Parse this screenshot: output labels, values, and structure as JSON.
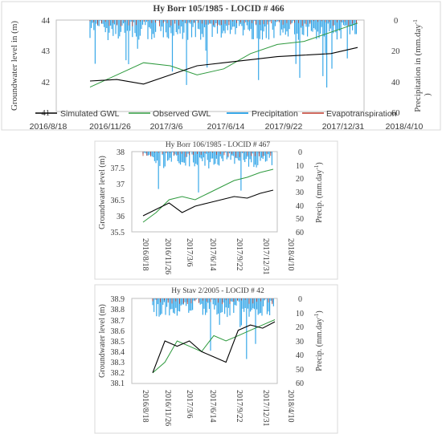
{
  "chart_data": [
    {
      "type": "line",
      "title": "Hy Borr 105/1985 - LOCID # 466",
      "ylabel": "Groundwater level in (m)",
      "ylabel2": "Precipitation in (mm.day",
      "ylabel2_sup": "-1",
      "ylabel2_close": ")",
      "ylim": [
        41,
        44
      ],
      "yticks": [
        "41",
        "42",
        "43",
        "44"
      ],
      "y2lim": [
        0,
        60
      ],
      "y2ticks": [
        "0",
        "20",
        "40",
        "60"
      ],
      "y2_inverted": true,
      "xticks": [
        "2016/8/18",
        "2016/11/26",
        "2017/3/6",
        "2017/6/14",
        "2017/9/22",
        "2017/12/31",
        "2018/4/10"
      ],
      "legend": [
        "Simulated GWL",
        "Observed GWL",
        "Precipitation",
        "Evapotranspiration"
      ],
      "legend_position": "bottom",
      "series": [
        {
          "name": "Simulated GWL",
          "color": "#000000",
          "x": [
            0,
            1,
            2,
            3,
            4,
            5,
            6,
            7,
            8,
            9,
            10
          ],
          "y": [
            42.0,
            42.05,
            41.9,
            42.2,
            42.5,
            42.6,
            42.7,
            42.8,
            42.85,
            42.9,
            43.1
          ]
        },
        {
          "name": "Observed GWL",
          "color": "#2e9a3e",
          "x": [
            0,
            1,
            2,
            3,
            4,
            5,
            6,
            7,
            8,
            9,
            10
          ],
          "y": [
            41.8,
            42.2,
            42.6,
            42.5,
            42.2,
            42.4,
            42.9,
            43.2,
            43.3,
            43.6,
            43.9
          ]
        }
      ]
    },
    {
      "type": "line",
      "title": "Hy Borr 106/1985 - LOCID # 467",
      "ylabel": "Groundwater level (m)",
      "ylabel2": "Precip. (mm.day",
      "ylabel2_sup": "-1",
      "ylabel2_close": ")",
      "ylim": [
        35.5,
        38
      ],
      "yticks": [
        "35.5",
        "36",
        "36.5",
        "37",
        "37.5",
        "38"
      ],
      "y2lim": [
        0,
        60
      ],
      "y2ticks": [
        "0",
        "10",
        "20",
        "30",
        "40",
        "50",
        "60"
      ],
      "y2_inverted": true,
      "xticks": [
        "2016/8/18",
        "2016/11/26",
        "2017/3/6",
        "2017/6/14",
        "2017/9/22",
        "2017/12/31",
        "2018/4/10"
      ],
      "series": [
        {
          "name": "Simulated GWL",
          "color": "#000000",
          "x": [
            0,
            1,
            2,
            3,
            4,
            5,
            6,
            7,
            8,
            9,
            10
          ],
          "y": [
            36.0,
            36.2,
            36.4,
            36.1,
            36.3,
            36.4,
            36.5,
            36.6,
            36.55,
            36.7,
            36.8
          ]
        },
        {
          "name": "Observed GWL",
          "color": "#2e9a3e",
          "x": [
            0,
            1,
            2,
            3,
            4,
            5,
            6,
            7,
            8,
            9,
            10
          ],
          "y": [
            35.8,
            36.1,
            36.5,
            36.6,
            36.5,
            36.7,
            36.9,
            37.1,
            37.2,
            37.35,
            37.45
          ]
        }
      ]
    },
    {
      "type": "line",
      "title": "Hy Stav 2/2005 - LOCID # 42",
      "ylabel": "Groundwater level (m)",
      "ylabel2": "Precip. (mm.day",
      "ylabel2_sup": "-1",
      "ylabel2_close": ")",
      "ylim": [
        38.1,
        38.9
      ],
      "yticks": [
        "38.1",
        "38.2",
        "38.3",
        "38.4",
        "38.5",
        "38.6",
        "38.7",
        "38.8",
        "38.9"
      ],
      "y2lim": [
        0,
        60
      ],
      "y2ticks": [
        "0",
        "10",
        "20",
        "30",
        "40",
        "50",
        "60"
      ],
      "y2_inverted": true,
      "xticks": [
        "2016/8/18",
        "2016/11/26",
        "2017/3/6",
        "2017/6/14",
        "2017/9/22",
        "2017/12/31",
        "2018/4/10"
      ],
      "series": [
        {
          "name": "Simulated GWL",
          "color": "#000000",
          "x": [
            0,
            1,
            2,
            3,
            4,
            5,
            6,
            7,
            8,
            9,
            10
          ],
          "y": [
            38.2,
            38.5,
            38.45,
            38.5,
            38.4,
            38.35,
            38.3,
            38.6,
            38.65,
            38.62,
            38.68
          ]
        },
        {
          "name": "Observed GWL",
          "color": "#2e9a3e",
          "x": [
            0,
            1,
            2,
            3,
            4,
            5,
            6,
            7,
            8,
            9,
            10
          ],
          "y": [
            38.2,
            38.3,
            38.5,
            38.45,
            38.4,
            38.55,
            38.5,
            38.55,
            38.6,
            38.65,
            38.7
          ]
        }
      ]
    }
  ]
}
